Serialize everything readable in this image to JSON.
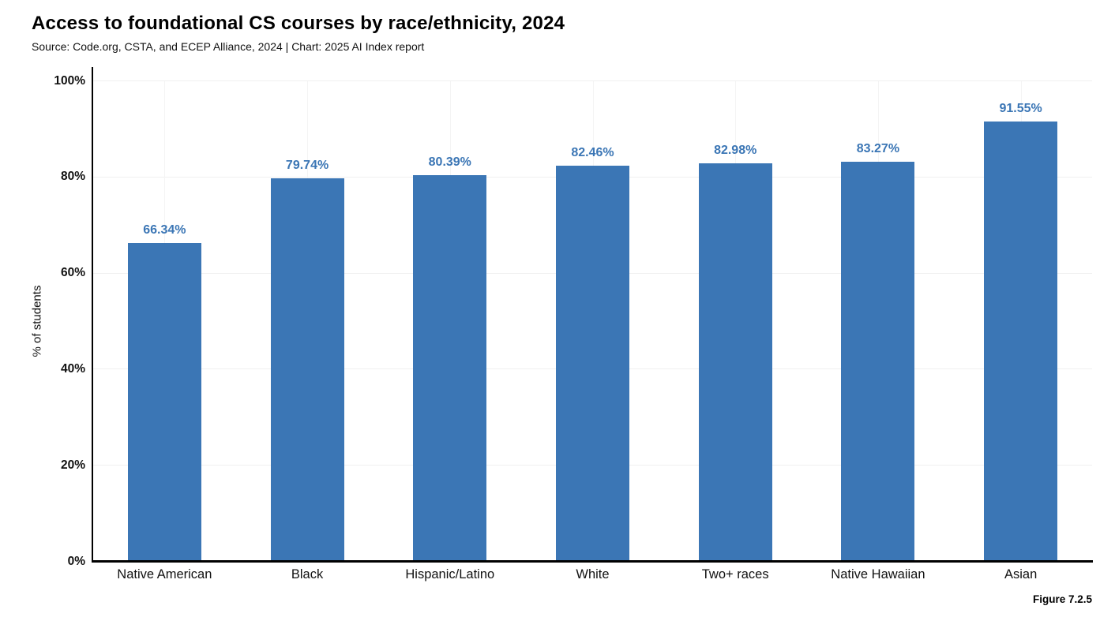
{
  "chart": {
    "title": "Access to foundational CS courses by race/ethnicity, 2024",
    "subtitle": "Source: Code.org, CSTA, and ECEP Alliance, 2024 | Chart: 2025 AI Index report",
    "figure_label": "Figure 7.2.5"
  },
  "chart_data": {
    "type": "bar",
    "title": "Access to foundational CS courses by race/ethnicity, 2024",
    "subtitle": "Source: Code.org, CSTA, and ECEP Alliance, 2024 | Chart: 2025 AI Index report",
    "categories": [
      "Native American",
      "Black",
      "Hispanic/Latino",
      "White",
      "Two+ races",
      "Native Hawaiian",
      "Asian"
    ],
    "values": [
      66.34,
      79.74,
      80.39,
      82.46,
      82.98,
      83.27,
      91.55
    ],
    "value_labels": [
      "66.34%",
      "79.74%",
      "80.39%",
      "82.46%",
      "82.98%",
      "83.27%",
      "91.55%"
    ],
    "xlabel": "",
    "ylabel": "% of students",
    "ylim": [
      0,
      100
    ],
    "ytick_labels": [
      "0%",
      "20%",
      "40%",
      "60%",
      "80%",
      "100%"
    ],
    "ytick_values": [
      0,
      20,
      40,
      60,
      80,
      100
    ],
    "grid": true,
    "legend": "none",
    "bar_color": "#3b76b5",
    "value_label_color": "#3b76b5",
    "axis_color": "#000000",
    "gridline_color": "#f0f0f0"
  }
}
